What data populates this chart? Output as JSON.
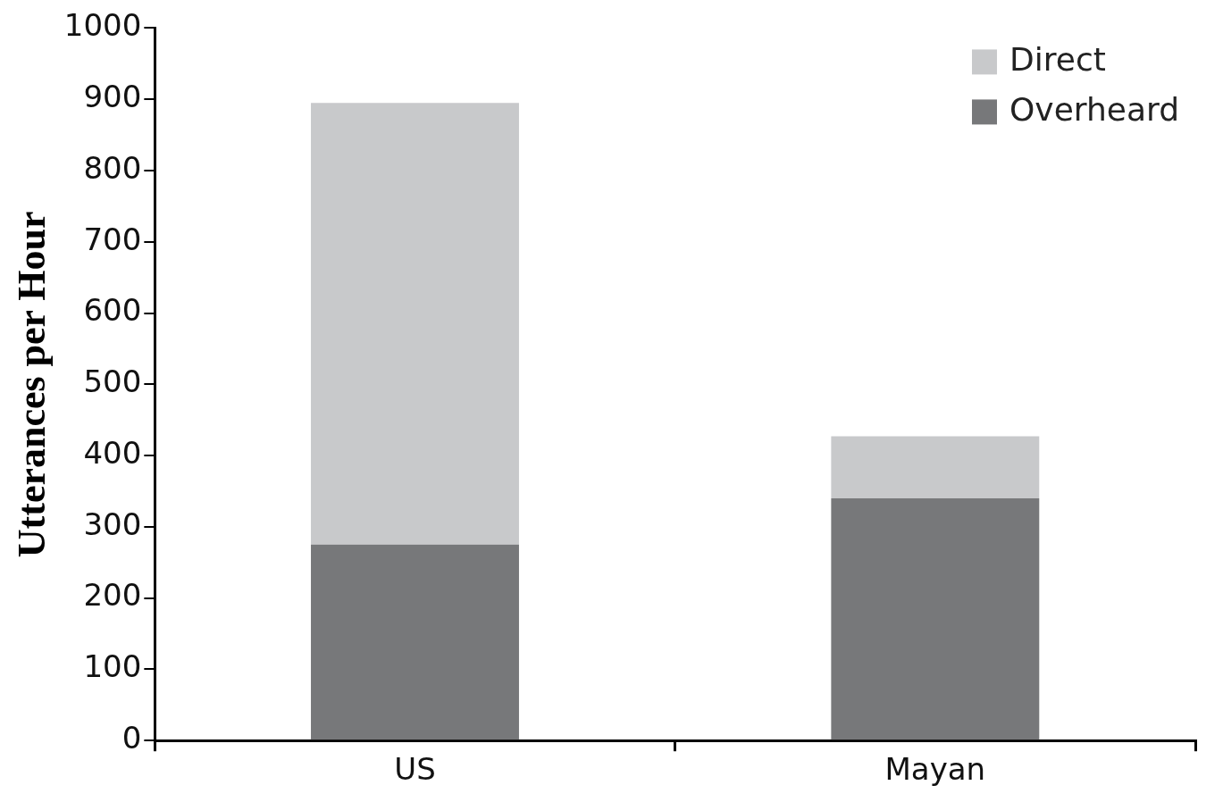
{
  "chart_data": {
    "type": "bar",
    "ylabel": "Utterances per Hour",
    "categories": [
      "US",
      "Mayan"
    ],
    "stacked": true,
    "series": [
      {
        "name": "Overheard",
        "color": "#77787a",
        "values": [
          275,
          340
        ]
      },
      {
        "name": "Direct",
        "color": "#c8c9cb",
        "values": [
          620,
          87
        ]
      }
    ],
    "ylim": [
      0,
      1000
    ],
    "yticks": [
      0,
      100,
      200,
      300,
      400,
      500,
      600,
      700,
      800,
      900,
      1000
    ],
    "grid": false,
    "legend": "top right"
  }
}
